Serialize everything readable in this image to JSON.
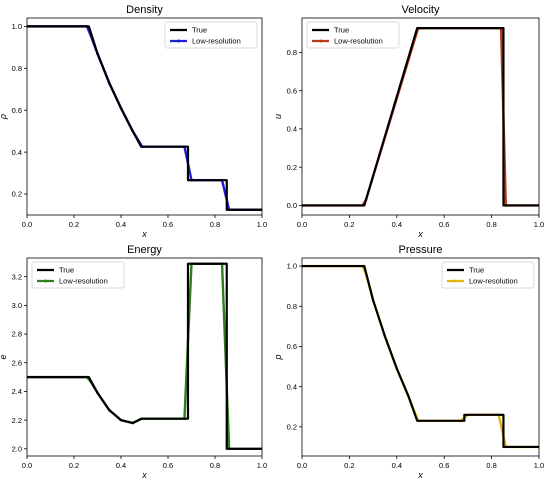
{
  "chart_data": [
    {
      "type": "line",
      "title": "Density",
      "xlabel": "x",
      "ylabel": "ρ",
      "xlim": [
        0.0,
        1.0
      ],
      "ylim": [
        0.1,
        1.04
      ],
      "xticks": [
        "0.0",
        "0.2",
        "0.4",
        "0.6",
        "0.8",
        "1.0"
      ],
      "yticks": [
        "0.2",
        "0.4",
        "0.6",
        "0.8",
        "1.0"
      ],
      "ytick_values": [
        0.2,
        0.4,
        0.6,
        0.8,
        1.0
      ],
      "legend_position": "top-right",
      "series": [
        {
          "name": "True",
          "color": "#000000",
          "x": [
            0.0,
            0.263,
            0.3,
            0.35,
            0.4,
            0.45,
            0.486,
            0.685,
            0.685,
            0.85,
            0.85,
            1.0
          ],
          "y": [
            1.0,
            1.0,
            0.87,
            0.73,
            0.61,
            0.5,
            0.426,
            0.426,
            0.266,
            0.266,
            0.125,
            0.125
          ]
        },
        {
          "name": "Low-resolution",
          "color": "#1f1fd6",
          "x": [
            0.0,
            0.255,
            0.27,
            0.3,
            0.35,
            0.4,
            0.45,
            0.49,
            0.67,
            0.7,
            0.83,
            0.86,
            1.0
          ],
          "y": [
            1.0,
            1.0,
            0.96,
            0.87,
            0.73,
            0.61,
            0.5,
            0.426,
            0.426,
            0.266,
            0.266,
            0.125,
            0.125
          ]
        }
      ]
    },
    {
      "type": "line",
      "title": "Velocity",
      "xlabel": "x",
      "ylabel": "u",
      "xlim": [
        0.0,
        1.0
      ],
      "ylim": [
        -0.05,
        0.98
      ],
      "xticks": [
        "0.0",
        "0.2",
        "0.4",
        "0.6",
        "0.8",
        "1.0"
      ],
      "yticks": [
        "0.0",
        "0.2",
        "0.4",
        "0.6",
        "0.8"
      ],
      "ytick_values": [
        0.0,
        0.2,
        0.4,
        0.6,
        0.8
      ],
      "legend_position": "top-left",
      "series": [
        {
          "name": "True",
          "color": "#000000",
          "x": [
            0.0,
            0.263,
            0.486,
            0.85,
            0.85,
            1.0
          ],
          "y": [
            0.0,
            0.0,
            0.927,
            0.927,
            0.0,
            0.0
          ]
        },
        {
          "name": "Low-resolution",
          "color": "#b83a1a",
          "x": [
            0.0,
            0.255,
            0.27,
            0.49,
            0.84,
            0.86,
            1.0
          ],
          "y": [
            0.0,
            0.0,
            0.03,
            0.927,
            0.927,
            0.0,
            0.0
          ]
        }
      ]
    },
    {
      "type": "line",
      "title": "Energy",
      "xlabel": "x",
      "ylabel": "e",
      "xlim": [
        0.0,
        1.0
      ],
      "ylim": [
        1.95,
        3.33
      ],
      "xticks": [
        "0.0",
        "0.2",
        "0.4",
        "0.6",
        "0.8",
        "1.0"
      ],
      "yticks": [
        "2.0",
        "2.2",
        "2.4",
        "2.6",
        "2.8",
        "3.0",
        "3.2"
      ],
      "ytick_values": [
        2.0,
        2.2,
        2.4,
        2.6,
        2.8,
        3.0,
        3.2
      ],
      "legend_position": "top-left",
      "series": [
        {
          "name": "True",
          "color": "#000000",
          "x": [
            0.0,
            0.263,
            0.3,
            0.35,
            0.4,
            0.45,
            0.486,
            0.685,
            0.685,
            0.85,
            0.85,
            1.0
          ],
          "y": [
            2.5,
            2.5,
            2.39,
            2.27,
            2.2,
            2.18,
            2.21,
            2.21,
            3.29,
            3.29,
            2.0,
            2.0
          ]
        },
        {
          "name": "Low-resolution",
          "color": "#2e7d1e",
          "x": [
            0.0,
            0.255,
            0.27,
            0.3,
            0.35,
            0.4,
            0.45,
            0.49,
            0.67,
            0.7,
            0.83,
            0.86,
            1.0
          ],
          "y": [
            2.5,
            2.5,
            2.47,
            2.39,
            2.27,
            2.2,
            2.18,
            2.21,
            2.21,
            3.29,
            3.29,
            2.0,
            2.0
          ]
        }
      ]
    },
    {
      "type": "line",
      "title": "Pressure",
      "xlabel": "x",
      "ylabel": "p",
      "xlim": [
        0.0,
        1.0
      ],
      "ylim": [
        0.055,
        1.04
      ],
      "xticks": [
        "0.0",
        "0.2",
        "0.4",
        "0.6",
        "0.8",
        "1.0"
      ],
      "yticks": [
        "0.2",
        "0.4",
        "0.6",
        "0.8",
        "1.0"
      ],
      "ytick_values": [
        0.2,
        0.4,
        0.6,
        0.8,
        1.0
      ],
      "legend_position": "top-right",
      "series": [
        {
          "name": "True",
          "color": "#000000",
          "x": [
            0.0,
            0.263,
            0.3,
            0.35,
            0.4,
            0.45,
            0.486,
            0.685,
            0.685,
            0.85,
            0.85,
            1.0
          ],
          "y": [
            1.0,
            1.0,
            0.83,
            0.65,
            0.49,
            0.35,
            0.23,
            0.23,
            0.26,
            0.26,
            0.1,
            0.1
          ]
        },
        {
          "name": "Low-resolution",
          "color": "#e3b505",
          "x": [
            0.0,
            0.255,
            0.27,
            0.3,
            0.35,
            0.4,
            0.45,
            0.49,
            0.67,
            0.7,
            0.83,
            0.86,
            1.0
          ],
          "y": [
            1.0,
            1.0,
            0.96,
            0.83,
            0.65,
            0.49,
            0.35,
            0.23,
            0.23,
            0.26,
            0.26,
            0.1,
            0.1
          ]
        }
      ]
    }
  ]
}
